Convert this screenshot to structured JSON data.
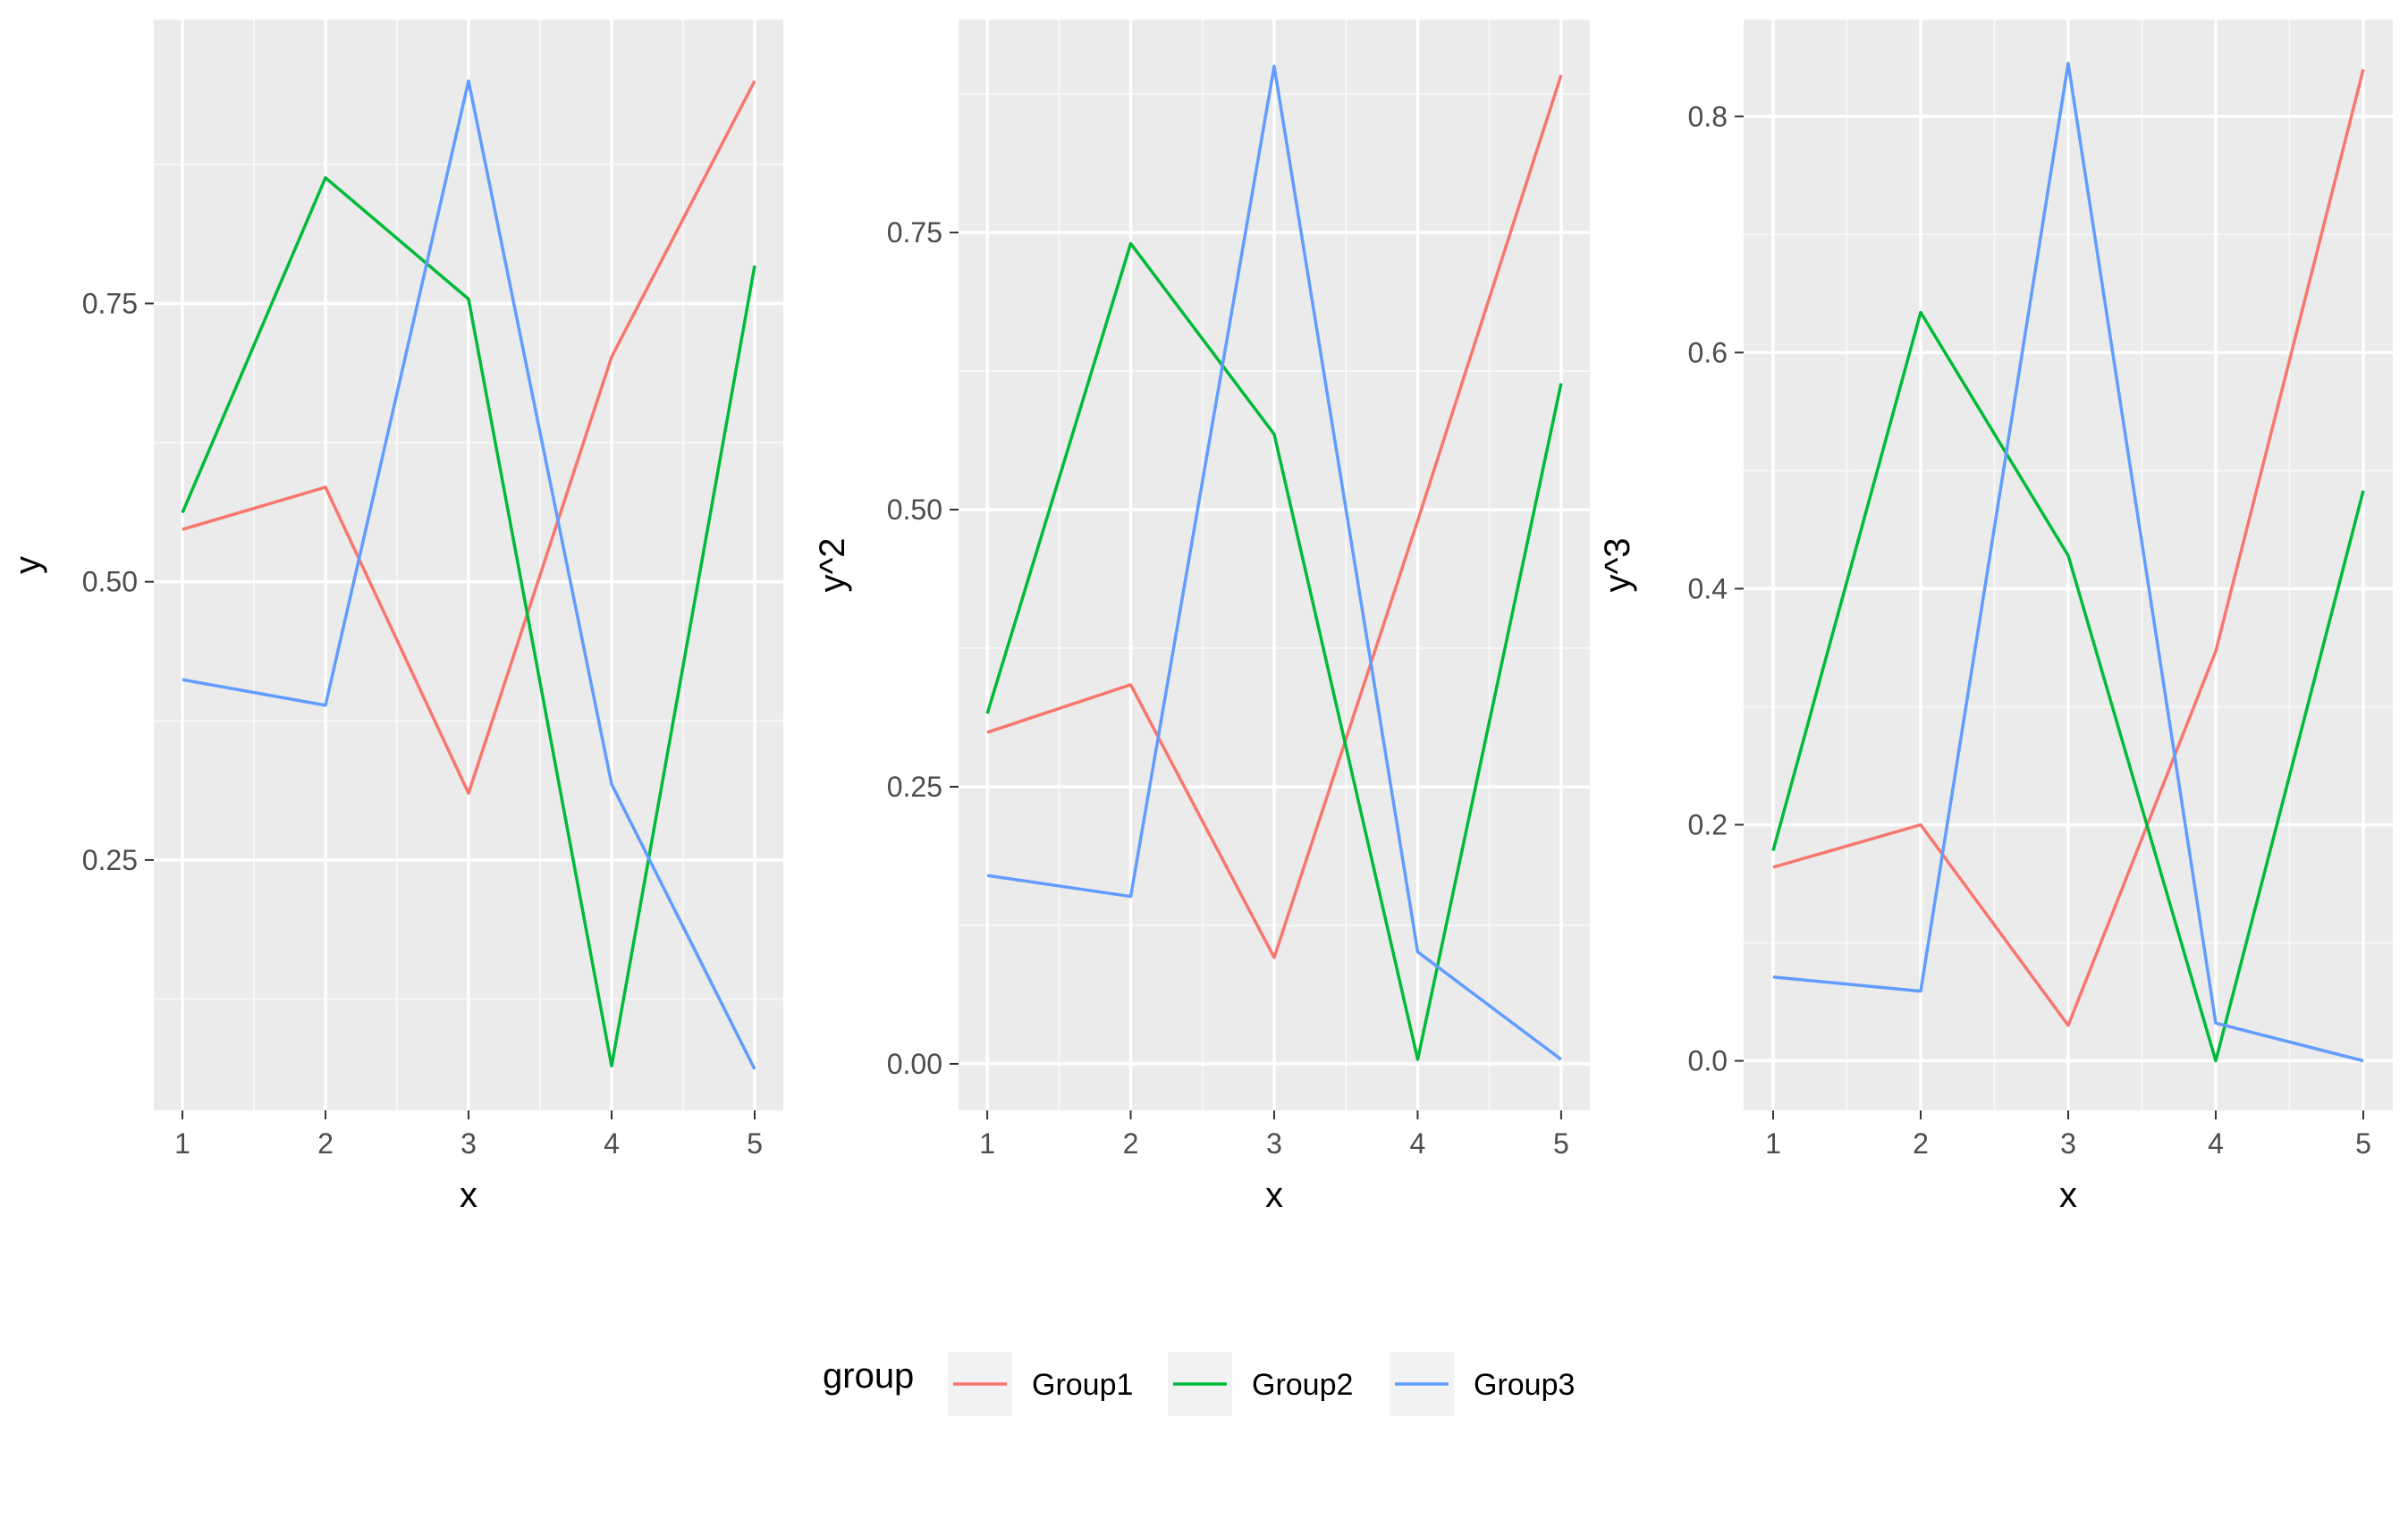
{
  "chart_data": [
    {
      "type": "line",
      "xlabel": "x",
      "ylabel": "y",
      "x": [
        1,
        2,
        3,
        4,
        5
      ],
      "xlim": [
        0.8,
        5.2
      ],
      "ylim": [
        0.025,
        1.005
      ],
      "xticks": [
        1,
        2,
        3,
        4,
        5
      ],
      "yticks": [
        0.25,
        0.5,
        0.75
      ],
      "ytick_labels": [
        "0.25",
        "0.50",
        "0.75"
      ],
      "grid": true,
      "series": [
        {
          "name": "Group1",
          "values": [
            0.547,
            0.585,
            0.31,
            0.702,
            0.95
          ]
        },
        {
          "name": "Group2",
          "values": [
            0.562,
            0.863,
            0.754,
            0.065,
            0.784
          ]
        },
        {
          "name": "Group3",
          "values": [
            0.412,
            0.389,
            0.95,
            0.318,
            0.062
          ]
        }
      ]
    },
    {
      "type": "line",
      "xlabel": "x",
      "ylabel": "y^2",
      "x": [
        1,
        2,
        3,
        4,
        5
      ],
      "xlim": [
        0.8,
        5.2
      ],
      "ylim": [
        -0.042,
        0.942
      ],
      "xticks": [
        1,
        2,
        3,
        4,
        5
      ],
      "yticks": [
        0,
        0.25,
        0.5,
        0.75
      ],
      "ytick_labels": [
        "0.00",
        "0.25",
        "0.50",
        "0.75"
      ],
      "grid": true,
      "series": [
        {
          "name": "Group1",
          "values": [
            0.299,
            0.342,
            0.096,
            0.49,
            0.892
          ]
        },
        {
          "name": "Group2",
          "values": [
            0.316,
            0.74,
            0.568,
            0.004,
            0.614
          ]
        },
        {
          "name": "Group3",
          "values": [
            0.17,
            0.151,
            0.9,
            0.101,
            0.004
          ]
        }
      ]
    },
    {
      "type": "line",
      "xlabel": "x",
      "ylabel": "y^3",
      "x": [
        1,
        2,
        3,
        4,
        5
      ],
      "xlim": [
        0.8,
        5.2
      ],
      "ylim": [
        -0.042,
        0.882
      ],
      "xticks": [
        1,
        2,
        3,
        4,
        5
      ],
      "yticks": [
        0,
        0.2,
        0.4,
        0.6,
        0.8
      ],
      "ytick_labels": [
        "0.0",
        "0.2",
        "0.4",
        "0.6",
        "0.8"
      ],
      "grid": true,
      "series": [
        {
          "name": "Group1",
          "values": [
            0.164,
            0.2,
            0.03,
            0.347,
            0.84
          ]
        },
        {
          "name": "Group2",
          "values": [
            0.178,
            0.634,
            0.428,
            0.0,
            0.483
          ]
        },
        {
          "name": "Group3",
          "values": [
            0.071,
            0.059,
            0.845,
            0.032,
            0.0
          ]
        }
      ]
    }
  ],
  "legend": {
    "title": "group",
    "placement": "bottom",
    "items": [
      {
        "label": "Group1",
        "color": "#F8766D"
      },
      {
        "label": "Group2",
        "color": "#00BA38"
      },
      {
        "label": "Group3",
        "color": "#619CFF"
      }
    ]
  },
  "colors": {
    "panel_background": "#EBEBEB",
    "grid_major": "#FFFFFF",
    "grid_minor": "#F7F7F7",
    "tick_text": "#4D4D4D"
  }
}
